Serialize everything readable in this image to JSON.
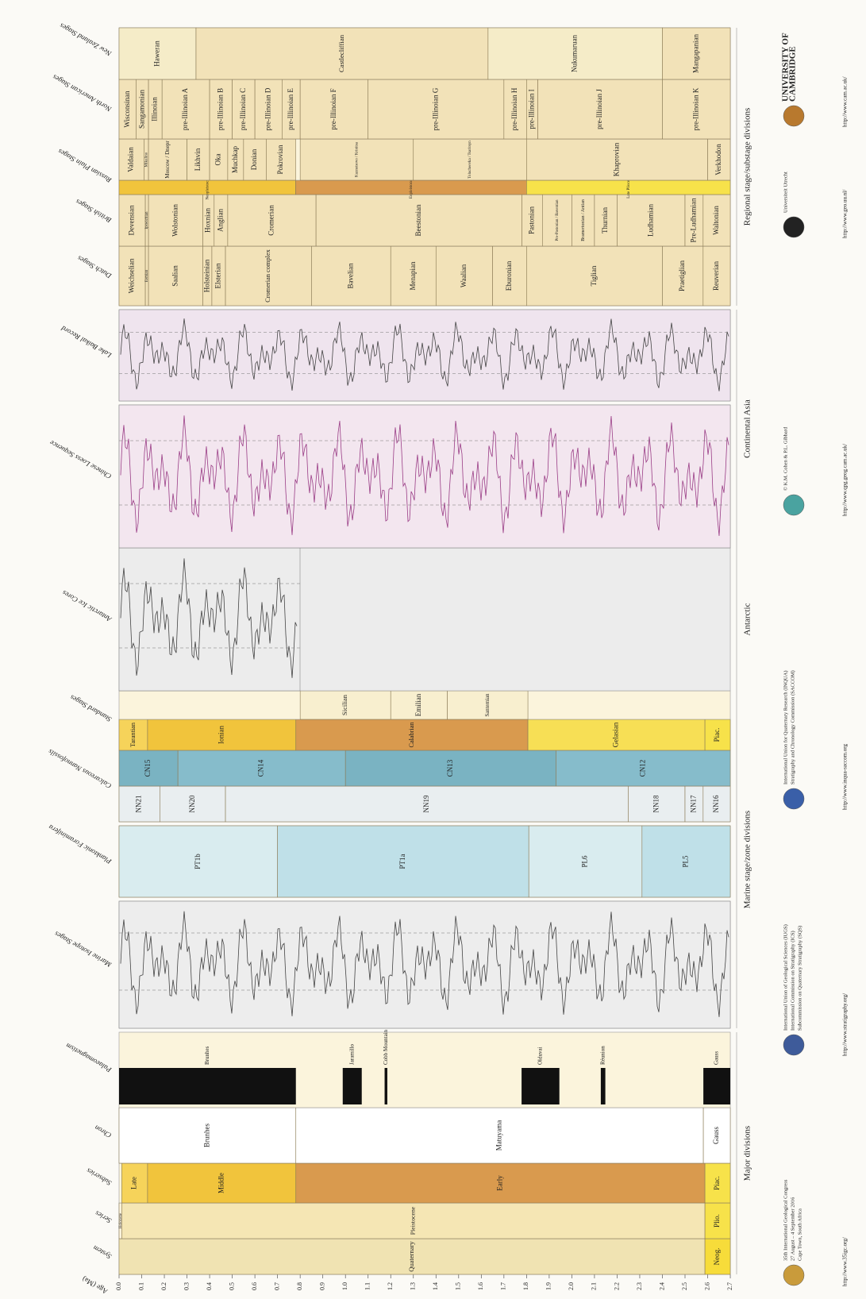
{
  "age_axis": {
    "label": "Age (Ma)",
    "ticks": [
      {
        "value": 0,
        "label": "0.0"
      },
      0.1,
      0.2,
      0.3,
      0.4,
      0.5,
      0.6,
      0.7,
      0.8,
      0.9,
      {
        "value": 1,
        "label": "1.0"
      },
      1.1,
      1.2,
      1.3,
      1.4,
      1.5,
      1.6,
      1.7,
      1.8,
      1.9,
      {
        "value": 2,
        "label": "2.0"
      },
      2.1,
      2.2,
      2.3,
      2.4,
      2.5,
      2.6,
      2.7
    ]
  },
  "columns": [
    {
      "header": "System",
      "units": [
        {
          "label": "Quaternary",
          "from": 0,
          "to": 2.588,
          "color": "#f0e3b2"
        },
        {
          "label": "Neog.",
          "from": 2.588,
          "to": 2.7,
          "color": "#f7dc3a"
        }
      ]
    },
    {
      "header": "Series",
      "units": [
        {
          "label": "Holocene",
          "from": 0,
          "to": 0.0117,
          "color": "#fdf3dc"
        },
        {
          "label": "Pleistocene",
          "from": 0.0117,
          "to": 2.588,
          "color": "#f5e6b4"
        },
        {
          "label": "Plio.",
          "from": 2.588,
          "to": 2.7,
          "color": "#f7e24a"
        }
      ]
    },
    {
      "header": "Subseries",
      "units": [
        {
          "label": "Late",
          "from": 0.0117,
          "to": 0.126,
          "color": "#f6d35a"
        },
        {
          "label": "Middle",
          "from": 0.126,
          "to": 0.781,
          "color": "#f1c43c"
        },
        {
          "label": "Early",
          "from": 0.781,
          "to": 2.588,
          "color": "#d99a4e"
        },
        {
          "label": "Piac.",
          "from": 2.588,
          "to": 2.7,
          "color": "#f7e24a"
        }
      ]
    },
    {
      "header": "Chron",
      "units": [
        {
          "label": "Brunhes",
          "from": 0,
          "to": 0.781,
          "color": "#ffffff"
        },
        {
          "label": "Matuyama",
          "from": 0.781,
          "to": 2.581,
          "color": "#ffffff"
        },
        {
          "label": "Gauss",
          "from": 2.581,
          "to": 2.7,
          "color": "#ffffff"
        }
      ]
    },
    {
      "header": "Palaeomagnetism",
      "units": [
        {
          "label": "Brunhes",
          "from": 0,
          "to": 0.781,
          "color": "#111111"
        },
        {
          "label": "Jaramillo",
          "from": 0.988,
          "to": 1.072,
          "color": "#111111"
        },
        {
          "label": "Cobb Mountain",
          "from": 1.173,
          "to": 1.185,
          "color": "#111111"
        },
        {
          "label": "Olduvai",
          "from": 1.778,
          "to": 1.945,
          "color": "#111111"
        },
        {
          "label": "Réunion",
          "from": 2.128,
          "to": 2.148,
          "color": "#111111"
        },
        {
          "label": "Gauss",
          "from": 2.581,
          "to": 2.7,
          "color": "#111111"
        }
      ]
    },
    {
      "header": "Marine Isotope Stages",
      "units": [],
      "curve": true
    },
    {
      "header": "Planktonic Foraminifera",
      "units": [
        {
          "label": "PT1b",
          "from": 0,
          "to": 0.7,
          "color": "#d9ecef"
        },
        {
          "label": "PT1a",
          "from": 0.7,
          "to": 1.81,
          "color": "#bfe0e8"
        },
        {
          "label": "PL6",
          "from": 1.81,
          "to": 2.31,
          "color": "#d9ecef"
        },
        {
          "label": "PL5",
          "from": 2.31,
          "to": 2.7,
          "color": "#bfe0e8"
        }
      ]
    },
    {
      "header": "Calcareous Nannofossils",
      "units": [
        {
          "label": "NN21",
          "from": 0,
          "to": 0.18,
          "color": "#e9eef0"
        },
        {
          "label": "NN20",
          "from": 0.18,
          "to": 0.47,
          "color": "#e9eef0"
        },
        {
          "label": "NN19",
          "from": 0.47,
          "to": 2.25,
          "color": "#e9eef0"
        },
        {
          "label": "NN18",
          "from": 2.25,
          "to": 2.5,
          "color": "#e9eef0"
        },
        {
          "label": "NN17",
          "from": 2.5,
          "to": 2.58,
          "color": "#e9eef0"
        },
        {
          "label": "NN16",
          "from": 2.58,
          "to": 2.7,
          "color": "#e9eef0"
        }
      ]
    },
    {
      "units": [
        {
          "label": "CN15",
          "from": 0,
          "to": 0.26,
          "color": "#7ab3c2"
        },
        {
          "label": "CN14",
          "from": 0.26,
          "to": 1.0,
          "color": "#86bccb"
        },
        {
          "label": "CN13",
          "from": 1.0,
          "to": 1.93,
          "color": "#7ab3c2"
        },
        {
          "label": "CN12",
          "from": 1.93,
          "to": 2.7,
          "color": "#86bccb"
        }
      ]
    },
    {
      "header": "Standard Stages",
      "units": [
        {
          "label": "Tarantian",
          "from": 0,
          "to": 0.126,
          "color": "#f6d35a"
        },
        {
          "label": "Ionian",
          "from": 0.126,
          "to": 0.781,
          "color": "#f1c43c"
        },
        {
          "label": "Calabrian",
          "from": 0.781,
          "to": 1.806,
          "color": "#d99a4e"
        },
        {
          "label": "Gelasian",
          "from": 1.806,
          "to": 2.588,
          "color": "#f7df55"
        },
        {
          "label": "Piac.",
          "from": 2.588,
          "to": 2.7,
          "color": "#f7e24a"
        }
      ]
    },
    {
      "units": [
        {
          "label": "Sicilian",
          "from": 0.8,
          "to": 1.2,
          "color": "#f8efcf"
        },
        {
          "label": "Emilian",
          "from": 1.2,
          "to": 1.45,
          "color": "#f8efcf"
        },
        {
          "label": "Santernian",
          "from": 1.45,
          "to": 1.806,
          "color": "#f8efcf"
        }
      ]
    },
    {
      "header": "Antarctic Ice Cores",
      "units": [],
      "curve": true
    },
    {
      "header": "Chinese Loess Sequence",
      "units": [],
      "curve": true
    },
    {
      "header": "Lake Baikal Record",
      "units": [],
      "curve": true
    },
    {
      "header": "Dutch Stages",
      "units": [
        {
          "label": "Weichselian",
          "from": 0,
          "to": 0.116,
          "color": "#f2e2b8"
        },
        {
          "label": "Eemian",
          "from": 0.116,
          "to": 0.13,
          "color": "#f2e2b8"
        },
        {
          "label": "Saalian",
          "from": 0.13,
          "to": 0.37,
          "color": "#f2e2b8"
        },
        {
          "label": "Holsteinian",
          "from": 0.37,
          "to": 0.41,
          "color": "#f2e2b8"
        },
        {
          "label": "Elsterian",
          "from": 0.41,
          "to": 0.47,
          "color": "#f2e2b8"
        },
        {
          "label": "Cromerian complex",
          "from": 0.47,
          "to": 0.85,
          "color": "#f2e2b8"
        },
        {
          "label": "Bavelian",
          "from": 0.85,
          "to": 1.2,
          "color": "#f2e2b8"
        },
        {
          "label": "Menapian",
          "from": 1.2,
          "to": 1.4,
          "color": "#f2e2b8"
        },
        {
          "label": "Waalian",
          "from": 1.4,
          "to": 1.65,
          "color": "#f2e2b8"
        },
        {
          "label": "Eburonian",
          "from": 1.65,
          "to": 1.8,
          "color": "#f2e2b8"
        },
        {
          "label": "Tiglian",
          "from": 1.8,
          "to": 2.4,
          "color": "#f2e2b8"
        },
        {
          "label": "Praetiglian",
          "from": 2.4,
          "to": 2.58,
          "color": "#f2e2b8"
        },
        {
          "label": "Reuverian",
          "from": 2.58,
          "to": 2.7,
          "color": "#f2e2b8"
        }
      ]
    },
    {
      "header": "British Stages",
      "units": [
        {
          "label": "Devensian",
          "from": 0,
          "to": 0.116,
          "color": "#f2e2b8"
        },
        {
          "label": "Ipswichian",
          "from": 0.116,
          "to": 0.13,
          "color": "#f2e2b8"
        },
        {
          "label": "Wolstonian",
          "from": 0.13,
          "to": 0.37,
          "color": "#f2e2b8"
        },
        {
          "label": "Hoxnian",
          "from": 0.37,
          "to": 0.42,
          "color": "#f2e2b8"
        },
        {
          "label": "Anglian",
          "from": 0.42,
          "to": 0.48,
          "color": "#f2e2b8"
        },
        {
          "label": "Cromerian",
          "from": 0.48,
          "to": 0.87,
          "color": "#f2e2b8"
        },
        {
          "label": "Beestonian",
          "from": 0.87,
          "to": 1.78,
          "color": "#f2e2b8"
        },
        {
          "label": "Pastonian",
          "from": 1.78,
          "to": 1.87,
          "color": "#f2e2b8"
        },
        {
          "label": "Pre-Pastonian / Baventian",
          "from": 1.87,
          "to": 2.0,
          "color": "#f2e2b8"
        },
        {
          "label": "Bramertonian / Antian",
          "from": 2.0,
          "to": 2.1,
          "color": "#f2e2b8"
        },
        {
          "label": "Thurnian",
          "from": 2.1,
          "to": 2.2,
          "color": "#f2e2b8"
        },
        {
          "label": "Ludhamian",
          "from": 2.2,
          "to": 2.5,
          "color": "#f2e2b8"
        },
        {
          "label": "Pre-Ludhamian",
          "from": 2.5,
          "to": 2.58,
          "color": "#f2e2b8"
        },
        {
          "label": "Waltonian",
          "from": 2.58,
          "to": 2.7,
          "color": "#f2e2b8"
        }
      ]
    },
    {
      "units": [
        {
          "label": "Neopleistocene",
          "from": 0,
          "to": 0.78,
          "color": "#f1c43c"
        },
        {
          "label": "Eopleistocene",
          "from": 0.78,
          "to": 1.8,
          "color": "#d99a4e"
        },
        {
          "label": "Late Pliocene",
          "from": 1.8,
          "to": 2.7,
          "color": "#f7e24a"
        }
      ]
    },
    {
      "header": "Russian Plain Stages",
      "units": [
        {
          "label": "Valdaian",
          "from": 0,
          "to": 0.11,
          "color": "#f2e2b8"
        },
        {
          "label": "Mikulino",
          "from": 0.11,
          "to": 0.13,
          "color": "#f2e2b8"
        },
        {
          "label": "Moscow / Dnepr",
          "from": 0.13,
          "to": 0.3,
          "color": "#f2e2b8"
        },
        {
          "label": "Likhvin",
          "from": 0.3,
          "to": 0.4,
          "color": "#f2e2b8"
        },
        {
          "label": "Oka",
          "from": 0.4,
          "to": 0.48,
          "color": "#f2e2b8"
        },
        {
          "label": "Muchkap",
          "from": 0.48,
          "to": 0.55,
          "color": "#f2e2b8"
        },
        {
          "label": "Donian",
          "from": 0.55,
          "to": 0.65,
          "color": "#f2e2b8"
        },
        {
          "label": "Pokrovian",
          "from": 0.65,
          "to": 0.78,
          "color": "#f2e2b8"
        },
        {
          "label": "Kuznetsovo / Krinitsa",
          "from": 0.8,
          "to": 1.3,
          "color": "#f2e2b8"
        },
        {
          "label": "Tolucheevka / Tsaritsyn",
          "from": 1.3,
          "to": 1.8,
          "color": "#f2e2b8"
        },
        {
          "label": "Khaprovian",
          "from": 1.8,
          "to": 2.6,
          "color": "#f2e2b8"
        },
        {
          "label": "Verkhodon",
          "from": 2.6,
          "to": 2.7,
          "color": "#f2e2b8"
        }
      ]
    },
    {
      "header": "North American Stages",
      "units": [
        {
          "label": "Wisconsinan",
          "from": 0,
          "to": 0.075,
          "color": "#f2e2b8"
        },
        {
          "label": "Sangamonian",
          "from": 0.075,
          "to": 0.13,
          "color": "#f2e2b8"
        },
        {
          "label": "Illinoian",
          "from": 0.13,
          "to": 0.19,
          "color": "#f2e2b8"
        },
        {
          "label": "pre-Illinoian A",
          "from": 0.19,
          "to": 0.4,
          "color": "#f2e2b8"
        },
        {
          "label": "pre-Illinoian B",
          "from": 0.4,
          "to": 0.5,
          "color": "#f2e2b8"
        },
        {
          "label": "pre-Illinoian C",
          "from": 0.5,
          "to": 0.6,
          "color": "#f2e2b8"
        },
        {
          "label": "pre-Illinoian D",
          "from": 0.6,
          "to": 0.72,
          "color": "#f2e2b8"
        },
        {
          "label": "pre-Illinoian E",
          "from": 0.72,
          "to": 0.8,
          "color": "#f2e2b8"
        },
        {
          "label": "pre-Illinoian F",
          "from": 0.8,
          "to": 1.1,
          "color": "#f2e2b8"
        },
        {
          "label": "pre-Illinoian G",
          "from": 1.1,
          "to": 1.7,
          "color": "#f2e2b8"
        },
        {
          "label": "pre-Illinoian H",
          "from": 1.7,
          "to": 1.8,
          "color": "#f2e2b8"
        },
        {
          "label": "pre-Illinoian I",
          "from": 1.8,
          "to": 1.85,
          "color": "#f2e2b8"
        },
        {
          "label": "pre-Illinoian J",
          "from": 1.85,
          "to": 2.4,
          "color": "#f2e2b8"
        },
        {
          "label": "pre-Illinoian K",
          "from": 2.4,
          "to": 2.7,
          "color": "#f2e2b8"
        }
      ]
    },
    {
      "header": "New Zealand Stages",
      "units": [
        {
          "label": "Haweran",
          "from": 0,
          "to": 0.34,
          "color": "#f5ecc8"
        },
        {
          "label": "Castlecliffian",
          "from": 0.34,
          "to": 1.63,
          "color": "#f2e2b8"
        },
        {
          "label": "Nukumaruan",
          "from": 1.63,
          "to": 2.4,
          "color": "#f5ecc8"
        },
        {
          "label": "Mangapanian",
          "from": 2.4,
          "to": 2.7,
          "color": "#f2e2b8"
        }
      ]
    }
  ],
  "groups": [
    "Major divisions",
    "Marine stage/zone divisions",
    "Antarctic",
    "Continental Asia",
    "Regional stage/substage divisions"
  ],
  "footer": [
    {
      "lines": [
        "35th International Geological Congress",
        "27 August – 4 September 2016",
        "Cape Town, South Africa"
      ],
      "url": "http://www.35igc.org/"
    },
    {
      "lines": [
        "International Union of Geological Sciences (IUGS)",
        "International Commission on Stratigraphy (ICS)",
        "Subcommission on Quaternary Stratigraphy (SQS)"
      ],
      "url": "http://www.stratigraphy.org/"
    },
    {
      "lines": [
        "International Union for Quaternary Research (INQUA)",
        "Stratigraphy and Chronology Commission (SACCOM)"
      ],
      "url": "http://www.inqua-saccom.org"
    },
    {
      "lines": [
        "© K.M. Cohen & P.L. Gibbard"
      ],
      "url": "http://www.qpg.geog.cam.ac.uk/"
    },
    {
      "lines": [
        "Universiteit Utrecht"
      ],
      "url": "http://www.geo.uu.nl/"
    },
    {
      "lines": [
        "UNIVERSITY OF",
        "CAMBRIDGE"
      ],
      "url": "http://www.cam.ac.uk/"
    }
  ]
}
